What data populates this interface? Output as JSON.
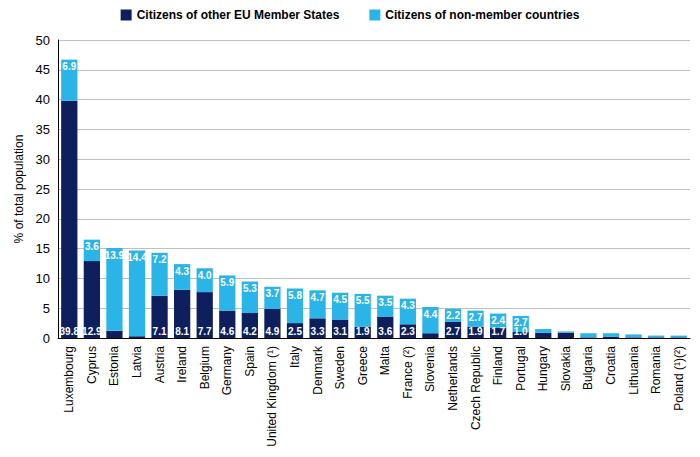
{
  "chart_data": {
    "type": "bar",
    "stacked": true,
    "data_labels": true,
    "grid": true,
    "legend": "top",
    "y_label": "% of total population",
    "categories": [
      "Luxembourg",
      "Cyprus",
      "Estonia",
      "Latvia",
      "Austria",
      "Ireland",
      "Belgium",
      "Germany",
      "Spain",
      "United Kingdom (¹)",
      "Italy",
      "Denmark",
      "Sweden",
      "Greece",
      "Malta",
      "France (²)",
      "Slovenia",
      "Netherlands",
      "Czech Republic",
      "Finland",
      "Portugal",
      "Hungary",
      "Slovakia",
      "Bulgaria",
      "Croatia",
      "Lithuania",
      "Romania",
      "Poland (¹)(²)"
    ],
    "ylim": [
      0,
      50
    ],
    "yticks": [
      0,
      5,
      10,
      15,
      20,
      25,
      30,
      35,
      40,
      45,
      50
    ],
    "series": [
      {
        "name": "Citizens of other EU Member States",
        "color": "#0d1f5c",
        "values": [
          39.8,
          12.9,
          1.2,
          0.3,
          7.1,
          8.1,
          7.7,
          4.6,
          4.2,
          4.9,
          2.5,
          3.3,
          3.1,
          1.9,
          3.6,
          2.3,
          0.8,
          2.7,
          1.9,
          1.7,
          1.0,
          0.9,
          0.9,
          0.1,
          0.2,
          0.1,
          0.1,
          0.1
        ],
        "value_labels": [
          "39.8",
          "12.9",
          null,
          null,
          "7.1",
          "8.1",
          "7.7",
          "4.6",
          "4.2",
          "4.9",
          "2.5",
          "3.3",
          "3.1",
          "1.9",
          "3.6",
          "2.3",
          null,
          "2.7",
          "1.9",
          "1.7",
          "1.0",
          null,
          null,
          null,
          null,
          null,
          null,
          null
        ]
      },
      {
        "name": "Citizens of non-member countries",
        "color": "#2ab4e8",
        "values": [
          6.9,
          3.6,
          13.9,
          14.4,
          7.2,
          4.3,
          4.0,
          5.9,
          5.3,
          3.7,
          5.8,
          4.7,
          4.5,
          5.5,
          3.5,
          4.3,
          4.4,
          2.2,
          2.7,
          2.4,
          2.7,
          0.6,
          0.2,
          0.7,
          0.6,
          0.5,
          0.3,
          0.3
        ],
        "value_labels": [
          "6.9",
          "3.6",
          "13.9",
          "14.4",
          "7.2",
          "4.3",
          "4.0",
          "5.9",
          "5.3",
          "3.7",
          "5.8",
          "4.7",
          "4.5",
          "5.5",
          "3.5",
          "4.3",
          "4.4",
          "2.2",
          "2.7",
          "2.4",
          "2.7",
          null,
          null,
          null,
          null,
          null,
          null,
          null
        ]
      }
    ]
  }
}
